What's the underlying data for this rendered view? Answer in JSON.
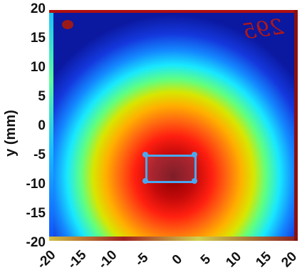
{
  "axes": {
    "ylabel": "y (mm)",
    "y_ticks": [
      "20",
      "15",
      "10",
      "5",
      "0",
      "-5",
      "-10",
      "-15",
      "-20"
    ],
    "x_ticks": [
      "-20",
      "-15",
      "-10",
      "-5",
      "0",
      "5",
      "10",
      "15",
      "20"
    ]
  },
  "image": {
    "stamp_text": "295",
    "roi": {
      "x_min": -4.5,
      "x_max": 3.7,
      "y_min": -10,
      "y_max": -5
    }
  },
  "colors": {
    "roi": "#4aa8f0"
  }
}
